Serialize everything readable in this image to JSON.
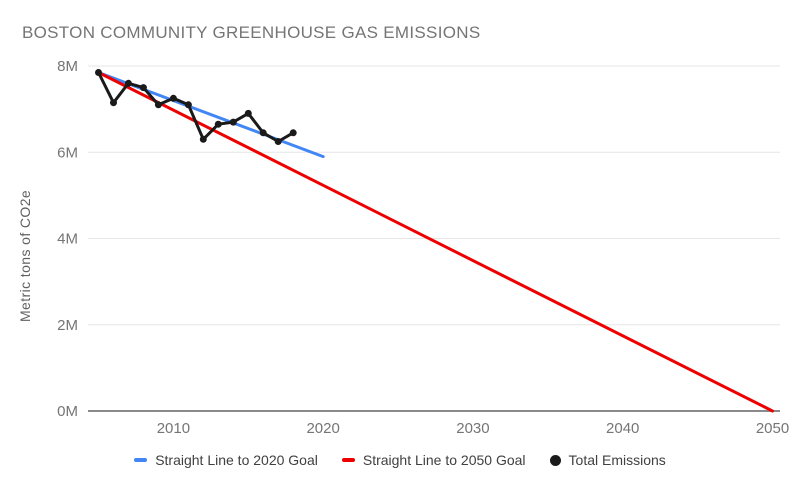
{
  "title": "BOSTON COMMUNITY GREENHOUSE GAS EMISSIONS",
  "y_axis_title": "Metric tons of CO2e",
  "colors": {
    "background": "#ffffff",
    "title_text": "#757575",
    "axis_title_text": "#616161",
    "tick_text": "#757575",
    "grid": "#e6e6e6",
    "baseline": "#8a8a8a",
    "goal_2020_line": "#4285f4",
    "goal_2050_line": "#ee0000",
    "emissions_line": "#1a1a1a",
    "legend_text": "#404040"
  },
  "legend": [
    {
      "label": "Straight Line to 2020 Goal",
      "color": "#4285f4",
      "shape": "dash"
    },
    {
      "label": "Straight Line to 2050 Goal",
      "color": "#ee0000",
      "shape": "dash"
    },
    {
      "label": "Total Emissions",
      "color": "#1a1a1a",
      "shape": "dot"
    }
  ],
  "chart_data": {
    "type": "line",
    "title": "BOSTON COMMUNITY GREENHOUSE GAS EMISSIONS",
    "xlabel": "",
    "ylabel": "Metric tons of CO2e",
    "xlim": [
      2004.3,
      2050.5
    ],
    "ylim": [
      0,
      8
    ],
    "grid": true,
    "legend_position": "bottom",
    "x_ticks": [
      {
        "value": 2010,
        "label": "2010"
      },
      {
        "value": 2020,
        "label": "2020"
      },
      {
        "value": 2030,
        "label": "2030"
      },
      {
        "value": 2040,
        "label": "2040"
      },
      {
        "value": 2050,
        "label": "2050"
      }
    ],
    "y_ticks": [
      {
        "value": 0,
        "label": "0M"
      },
      {
        "value": 2,
        "label": "2M"
      },
      {
        "value": 4,
        "label": "4M"
      },
      {
        "value": 6,
        "label": "6M"
      },
      {
        "value": 8,
        "label": "8M"
      }
    ],
    "y_unit": "million metric tons CO2e",
    "series": [
      {
        "id": "goal-2020",
        "name": "Straight Line to 2020 Goal",
        "color": "#4285f4",
        "points": false,
        "x": [
          2005,
          2020
        ],
        "y": [
          7.85,
          5.9
        ]
      },
      {
        "id": "goal-2050",
        "name": "Straight Line to 2050 Goal",
        "color": "#ee0000",
        "points": false,
        "x": [
          2005,
          2050
        ],
        "y": [
          7.85,
          0
        ]
      },
      {
        "id": "total-emissions",
        "name": "Total Emissions",
        "color": "#1a1a1a",
        "points": true,
        "x": [
          2005,
          2006,
          2007,
          2008,
          2009,
          2010,
          2011,
          2012,
          2013,
          2014,
          2015,
          2016,
          2017,
          2018
        ],
        "y": [
          7.85,
          7.15,
          7.6,
          7.5,
          7.1,
          7.25,
          7.1,
          6.3,
          6.65,
          6.7,
          6.9,
          6.45,
          6.25,
          6.45
        ]
      }
    ]
  }
}
